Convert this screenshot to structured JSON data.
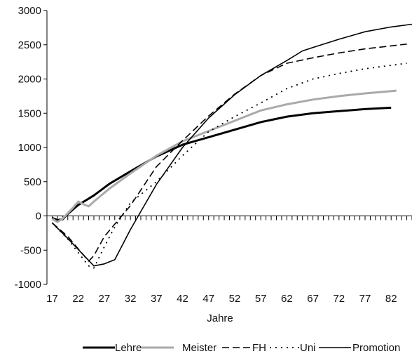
{
  "chart_data": {
    "type": "line",
    "xlabel": "Jahre",
    "ylabel": "",
    "xlim": [
      16,
      86
    ],
    "ylim": [
      -1000,
      3000
    ],
    "x_ticks": [
      17,
      22,
      27,
      32,
      37,
      42,
      47,
      52,
      57,
      62,
      67,
      72,
      77,
      82
    ],
    "y_ticks": [
      -1000,
      -500,
      0,
      500,
      1000,
      1500,
      2000,
      2500,
      3000
    ],
    "grid": false,
    "legend_position": "bottom",
    "series": [
      {
        "name": "Lehre",
        "color": "#000000",
        "style": "solid-thick",
        "points": [
          [
            17,
            -30
          ],
          [
            18,
            -60
          ],
          [
            19,
            -50
          ],
          [
            20,
            30
          ],
          [
            22,
            160
          ],
          [
            25,
            300
          ],
          [
            28,
            470
          ],
          [
            32,
            650
          ],
          [
            37,
            870
          ],
          [
            42,
            1040
          ],
          [
            47,
            1150
          ],
          [
            52,
            1260
          ],
          [
            57,
            1370
          ],
          [
            62,
            1450
          ],
          [
            67,
            1500
          ],
          [
            72,
            1530
          ],
          [
            77,
            1560
          ],
          [
            82,
            1580
          ]
        ]
      },
      {
        "name": "Meister",
        "color": "#aaaaaa",
        "style": "solid-thick",
        "points": [
          [
            17,
            -40
          ],
          [
            18,
            -90
          ],
          [
            19,
            -40
          ],
          [
            21,
            120
          ],
          [
            22,
            210
          ],
          [
            23,
            170
          ],
          [
            24,
            140
          ],
          [
            25,
            210
          ],
          [
            28,
            400
          ],
          [
            32,
            620
          ],
          [
            37,
            880
          ],
          [
            42,
            1090
          ],
          [
            47,
            1240
          ],
          [
            52,
            1390
          ],
          [
            57,
            1540
          ],
          [
            62,
            1630
          ],
          [
            67,
            1700
          ],
          [
            72,
            1750
          ],
          [
            77,
            1790
          ],
          [
            83,
            1830
          ]
        ]
      },
      {
        "name": "FH",
        "color": "#000000",
        "style": "dashed",
        "points": [
          [
            17,
            -100
          ],
          [
            20,
            -300
          ],
          [
            24,
            -660
          ],
          [
            25,
            -580
          ],
          [
            27,
            -300
          ],
          [
            32,
            150
          ],
          [
            37,
            720
          ],
          [
            42,
            1100
          ],
          [
            47,
            1460
          ],
          [
            52,
            1780
          ],
          [
            57,
            2050
          ],
          [
            62,
            2230
          ],
          [
            67,
            2310
          ],
          [
            72,
            2380
          ],
          [
            77,
            2440
          ],
          [
            85,
            2510
          ]
        ]
      },
      {
        "name": "Uni",
        "color": "#000000",
        "style": "dotted",
        "points": [
          [
            17,
            -100
          ],
          [
            20,
            -340
          ],
          [
            24,
            -730
          ],
          [
            25,
            -760
          ],
          [
            27,
            -450
          ],
          [
            29,
            -160
          ],
          [
            32,
            190
          ],
          [
            37,
            500
          ],
          [
            42,
            880
          ],
          [
            47,
            1230
          ],
          [
            52,
            1450
          ],
          [
            57,
            1650
          ],
          [
            62,
            1860
          ],
          [
            67,
            2000
          ],
          [
            72,
            2080
          ],
          [
            77,
            2150
          ],
          [
            85,
            2230
          ]
        ]
      },
      {
        "name": "Promotion",
        "color": "#000000",
        "style": "solid",
        "points": [
          [
            17,
            -100
          ],
          [
            20,
            -330
          ],
          [
            25,
            -730
          ],
          [
            27,
            -700
          ],
          [
            29,
            -640
          ],
          [
            32,
            -200
          ],
          [
            37,
            460
          ],
          [
            42,
            1000
          ],
          [
            47,
            1430
          ],
          [
            52,
            1770
          ],
          [
            57,
            2050
          ],
          [
            62,
            2270
          ],
          [
            65,
            2410
          ],
          [
            67,
            2460
          ],
          [
            72,
            2580
          ],
          [
            77,
            2690
          ],
          [
            82,
            2760
          ],
          [
            86,
            2800
          ]
        ]
      }
    ]
  }
}
